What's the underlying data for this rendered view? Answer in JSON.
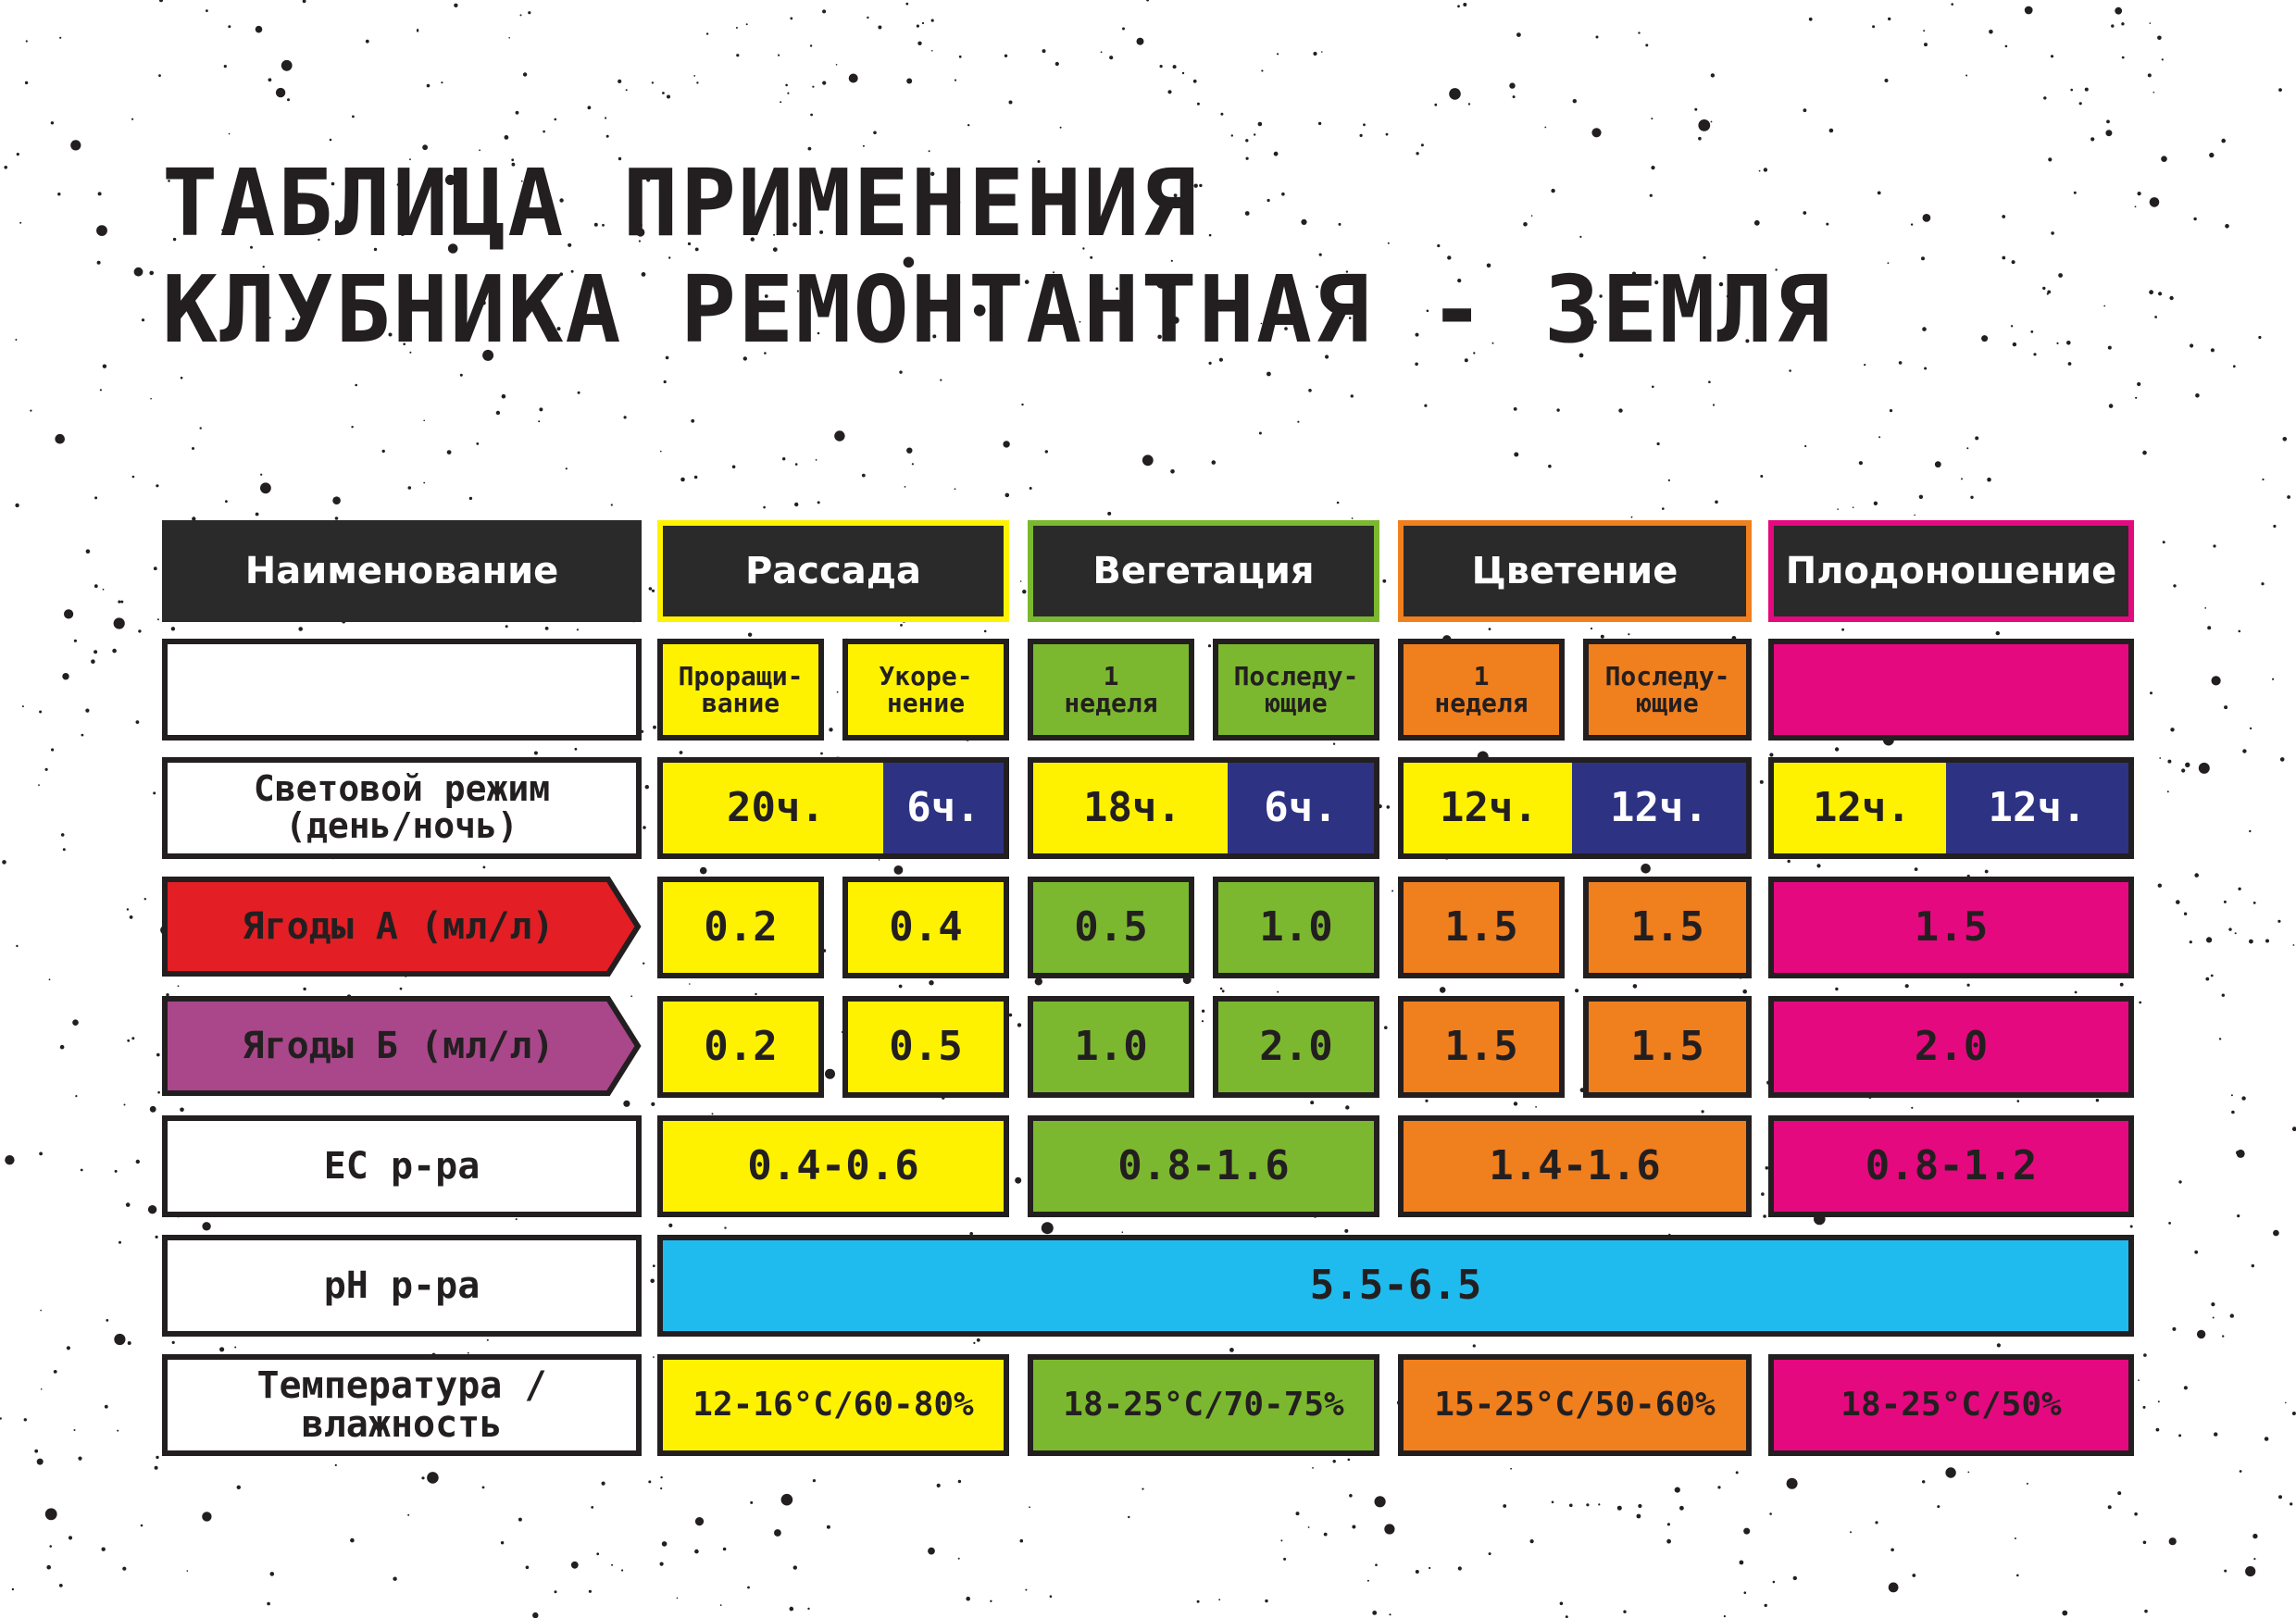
{
  "title": {
    "line1": "ТАБЛИЦА ПРИМЕНЕНИЯ",
    "line2": "КЛУБНИКА РЕМОНТАНТНАЯ - ЗЕМЛЯ"
  },
  "colors": {
    "dark": "#2a2a2a",
    "yellow": "#fff200",
    "green": "#7cb82f",
    "orange": "#f07f1e",
    "magenta": "#e5097f",
    "navy": "#2e3283",
    "blue": "#1fbbee",
    "red": "#e31e24",
    "purple": "#a9478a"
  },
  "header": {
    "name": "Наименование",
    "seedlings": "Рассада",
    "vegetation": "Вегетация",
    "flowering": "Цветение",
    "fruiting": "Плодоношение"
  },
  "subheader": {
    "seedlings_a": "Проращи-\nвание",
    "seedlings_b": "Укоре-\nнение",
    "vegetation_a": "1\nнеделя",
    "vegetation_b": "Последу-\nющие",
    "flowering_a": "1\nнеделя",
    "flowering_b": "Последу-\nющие"
  },
  "rows": {
    "light": {
      "label": "Световой режим\n(день/ночь)",
      "seedlings": [
        "20ч.",
        "6ч."
      ],
      "vegetation": [
        "18ч.",
        "6ч."
      ],
      "flowering": [
        "12ч.",
        "12ч."
      ],
      "fruiting": [
        "12ч.",
        "12ч."
      ]
    },
    "berries_a": {
      "label": "Ягоды А (мл/л)",
      "values": [
        "0.2",
        "0.4",
        "0.5",
        "1.0",
        "1.5",
        "1.5",
        "1.5"
      ]
    },
    "berries_b": {
      "label": "Ягоды Б (мл/л)",
      "values": [
        "0.2",
        "0.5",
        "1.0",
        "2.0",
        "1.5",
        "1.5",
        "2.0"
      ]
    },
    "ec": {
      "label": "EC р-ра",
      "values": [
        "0.4-0.6",
        "0.8-1.6",
        "1.4-1.6",
        "0.8-1.2"
      ]
    },
    "ph": {
      "label": "pH р-ра",
      "value": "5.5-6.5"
    },
    "temperature": {
      "label": "Температура /\nвлажность",
      "values": [
        "12-16°C/60-80%",
        "18-25°C/70-75%",
        "15-25°C/50-60%",
        "18-25°C/50%"
      ]
    }
  }
}
